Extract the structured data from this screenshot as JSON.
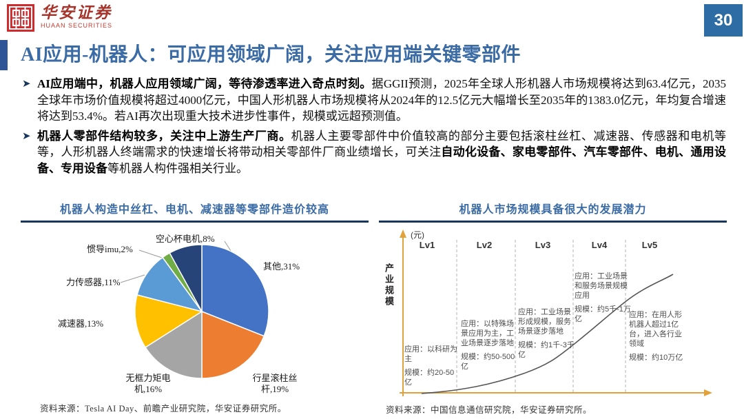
{
  "page": {
    "number": "30"
  },
  "logo": {
    "name_cn": "华安证券",
    "name_en": "HUAAN SECURITIES"
  },
  "title": "AI应用-机器人：可应用领域广阔，关注应用端关键零部件",
  "bullets": [
    {
      "bold": "AI应用端中，机器人应用领域广阔，等待渗透率进入奇点时刻。",
      "normal": "据GGII预测，2025年全球人形机器人市场规模将达到63.4亿元，2035全球年市场价值规模将超过4000亿元，中国人形机器人市场规模将从2024年的12.5亿元大幅增长至2035年的1383.0亿元，年均复合增速将达到53.4%。若AI再次出现重大技术进步性事件，规模或远超预测值。"
    },
    {
      "bold": "机器人零部件结构较多，关注中上游生产厂商。",
      "normal": "机器人主要零部件中价值较高的部分主要包括滚柱丝杠、减速器、传感器和电机等等，人形机器人终端需求的快速增长将带动相关零部件厂商业绩增长，可关注",
      "bold2": "自动化设备、家电零部件、汽车零部件、电机、通用设备、专用设备",
      "normal2": "等机器人构件强相关行业。"
    }
  ],
  "left_panel": {
    "title": "机器人构造中丝杠、电机、减速器等零部件造价较高",
    "source": "资料来源：Tesla AI Day、前瞻产业研究院，华安证券研究所。"
  },
  "right_panel": {
    "title": "机器人市场规模具备很大的发展潜力",
    "source": "资料来源：中国信息通信研究院，华安证券研究所。"
  },
  "chart_data": [
    {
      "type": "pie",
      "title": "机器人构造中丝杠、电机、减速器等零部件造价较高",
      "labels": [
        "其他",
        "行星滚柱丝杆",
        "无框力矩电机",
        "减速器",
        "力传感器",
        "惯导imu",
        "空心杯电机"
      ],
      "values": [
        31,
        19,
        16,
        13,
        11,
        2,
        8
      ],
      "unit": "%",
      "colors": [
        "#4472C4",
        "#ED7D31",
        "#A5A5A5",
        "#FFC000",
        "#5B9BD5",
        "#70AD47",
        "#264478"
      ],
      "start_angle_deg": 0,
      "direction": "clockwise",
      "legend_position": "outside-labels"
    },
    {
      "type": "line",
      "title": "机器人市场规模具备很大的发展潜力",
      "ylabel": "产业规模",
      "y_unit": "(元)",
      "xlabel": "",
      "grid": "dashed-vertical-stage-dividers",
      "curve_shape": "exponential-increasing",
      "stages": [
        {
          "level": "Lv1",
          "application": "应用：以科研为主",
          "scale": "规模：约20-50亿"
        },
        {
          "level": "Lv2",
          "application": "应用：以特殊场景应用为主，工业场景逐步落地",
          "scale": "规模：约50-500亿"
        },
        {
          "level": "Lv3",
          "application": "应用：工业场景形成规模，服务场景逐步落地",
          "scale": "规模：约1千-3千亿"
        },
        {
          "level": "Lv4",
          "application": "应用：工业场景和服务场景规模应用",
          "scale": "规模：约5千-1万亿"
        },
        {
          "level": "Lv5",
          "application": "应用：在用人形机器人超过1亿台，进入各行业领域",
          "scale": "规模：约10万亿"
        }
      ]
    }
  ]
}
